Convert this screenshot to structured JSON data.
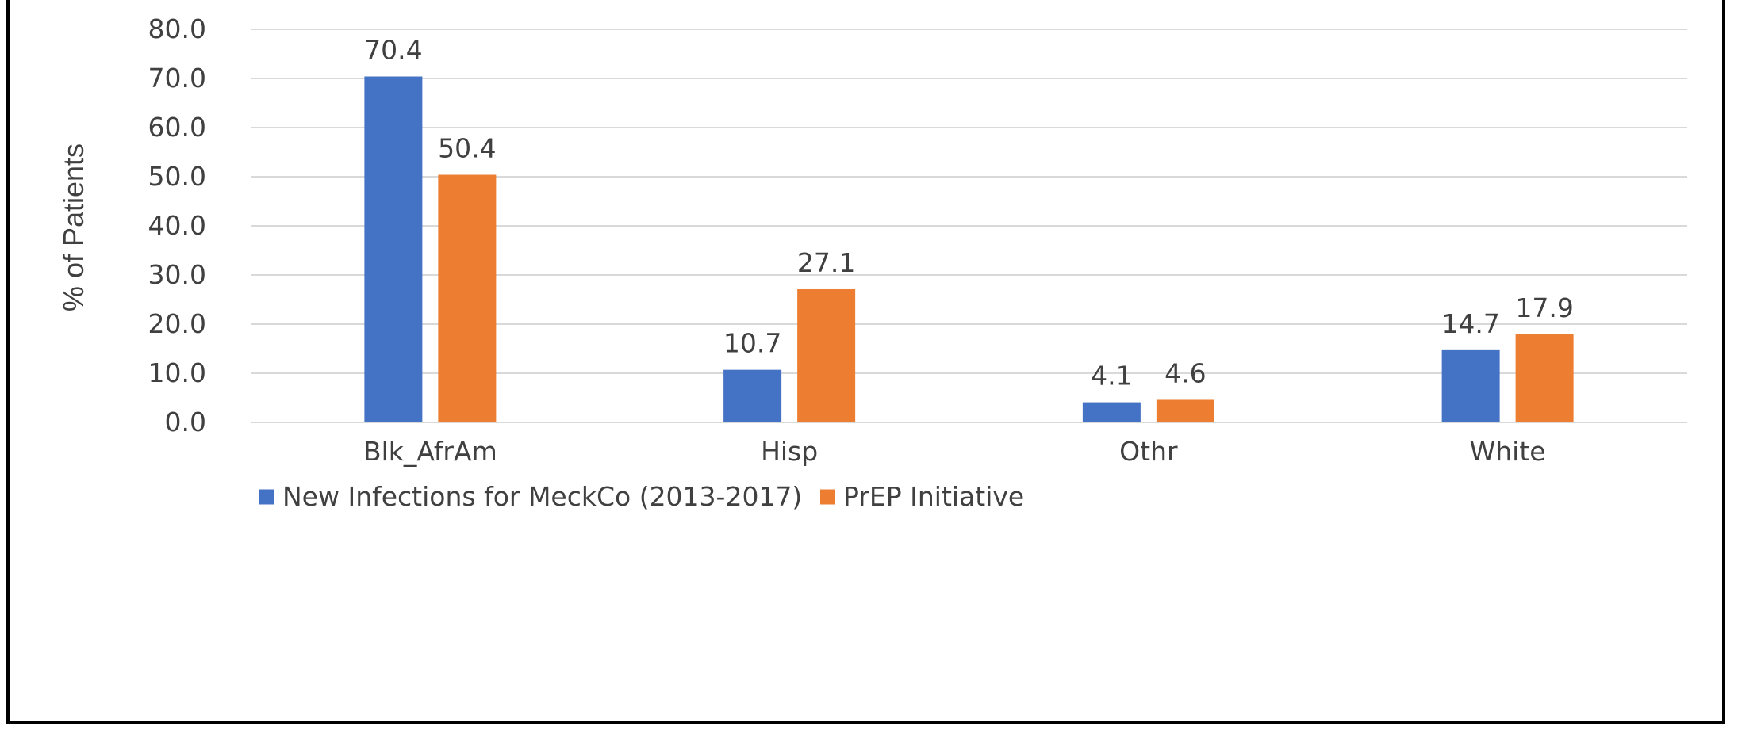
{
  "chart_data": {
    "type": "bar",
    "categories": [
      "Blk_AfrAm",
      "Hisp",
      "Othr",
      "White"
    ],
    "series": [
      {
        "name": "New Infections for MeckCo (2013-2017)",
        "values": [
          70.4,
          10.7,
          4.1,
          14.7
        ],
        "value_labels": [
          "70.4",
          "10.7",
          "4.1",
          "14.7"
        ],
        "color": "#4472C4"
      },
      {
        "name": "PrEP Initiative",
        "values": [
          50.4,
          27.1,
          4.6,
          17.9
        ],
        "value_labels": [
          "50.4",
          "27.1",
          "4.6",
          "17.9"
        ],
        "color": "#ED7D31"
      }
    ],
    "title": "",
    "xlabel": "",
    "ylabel": "% of Patients",
    "ylim": [
      0,
      80
    ],
    "yticks": [
      "0.0",
      "10.0",
      "20.0",
      "30.0",
      "40.0",
      "50.0",
      "60.0",
      "70.0",
      "80.0"
    ],
    "grid": true,
    "legend_position": "bottom",
    "gridline_color": "#D9D9D9"
  }
}
